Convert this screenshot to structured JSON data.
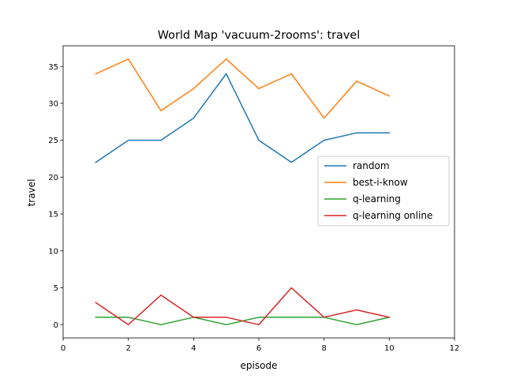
{
  "chart_data": {
    "type": "line",
    "title": "World Map 'vacuum-2rooms': travel",
    "xlabel": "episode",
    "ylabel": "travel",
    "xlim": [
      0,
      12
    ],
    "ylim": [
      -1.8,
      37.8
    ],
    "xticks": [
      0,
      2,
      4,
      6,
      8,
      10,
      12
    ],
    "yticks": [
      0,
      5,
      10,
      15,
      20,
      25,
      30,
      35
    ],
    "grid": false,
    "legend_position": "center-right",
    "x": [
      1,
      2,
      3,
      4,
      5,
      6,
      7,
      8,
      9,
      10
    ],
    "series": [
      {
        "name": "random",
        "color": "#1f77b4",
        "values": [
          22,
          25,
          25,
          28,
          34,
          25,
          22,
          25,
          26,
          26
        ]
      },
      {
        "name": "best-i-know",
        "color": "#ff7f0e",
        "values": [
          34,
          36,
          29,
          32,
          36,
          32,
          34,
          28,
          33,
          31
        ]
      },
      {
        "name": "q-learning",
        "color": "#2ca02c",
        "values": [
          1,
          1,
          0,
          1,
          0,
          1,
          1,
          1,
          0,
          1
        ]
      },
      {
        "name": "q-learning online",
        "color": "#d62728",
        "values": [
          3,
          0,
          4,
          1,
          1,
          0,
          5,
          1,
          2,
          1
        ]
      }
    ]
  }
}
